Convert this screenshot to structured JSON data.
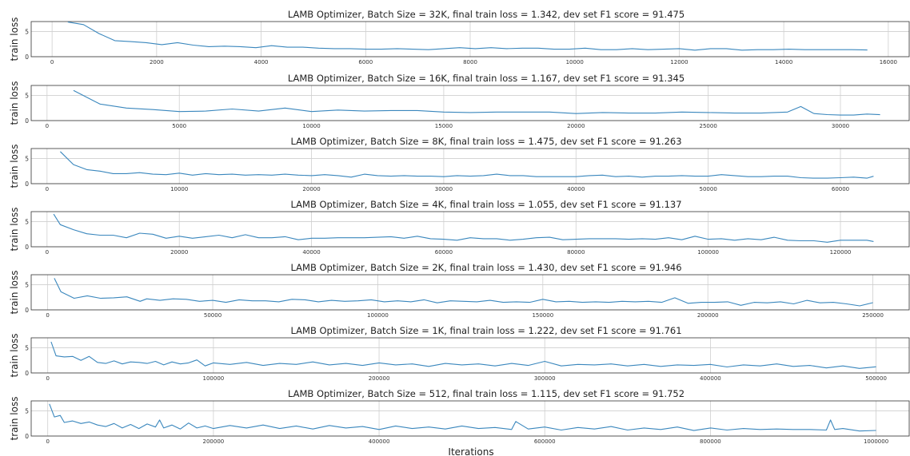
{
  "chart_data": [
    {
      "type": "line",
      "title": "LAMB Optimizer, Batch Size = 32K, final train loss = 1.342, dev set F1 score = 91.475",
      "ylabel": "train loss",
      "xlabel": "",
      "xlim": [
        -400,
        16400
      ],
      "ylim": [
        0,
        7
      ],
      "xticks": [
        0,
        2000,
        4000,
        6000,
        8000,
        10000,
        12000,
        14000,
        16000
      ],
      "yticks": [
        0,
        5
      ],
      "grid": true,
      "series": [
        {
          "x": [
            300,
            600,
            900,
            1200,
            1500,
            1800,
            2100,
            2400,
            2700,
            3000,
            3300,
            3600,
            3900,
            4200,
            4500,
            4800,
            5100,
            5400,
            5700,
            6000,
            6300,
            6600,
            6900,
            7200,
            7500,
            7800,
            8100,
            8400,
            8700,
            9000,
            9300,
            9600,
            9900,
            10200,
            10500,
            10800,
            11100,
            11400,
            11700,
            12000,
            12300,
            12600,
            12900,
            13200,
            13500,
            13800,
            14100,
            14400,
            14700,
            15000,
            15300,
            15600
          ],
          "y": [
            6.9,
            6.4,
            4.6,
            3.2,
            3.0,
            2.8,
            2.4,
            2.8,
            2.3,
            2.0,
            2.1,
            2.0,
            1.8,
            2.2,
            1.9,
            1.9,
            1.7,
            1.6,
            1.6,
            1.5,
            1.5,
            1.6,
            1.5,
            1.4,
            1.6,
            1.8,
            1.6,
            1.8,
            1.6,
            1.7,
            1.7,
            1.5,
            1.5,
            1.7,
            1.4,
            1.4,
            1.6,
            1.4,
            1.5,
            1.6,
            1.3,
            1.6,
            1.6,
            1.3,
            1.4,
            1.4,
            1.5,
            1.4,
            1.4,
            1.4,
            1.4,
            1.34
          ]
        }
      ]
    },
    {
      "type": "line",
      "title": "LAMB Optimizer, Batch Size = 16K, final train loss = 1.167, dev set F1 score = 91.345",
      "ylabel": "train loss",
      "xlabel": "",
      "xlim": [
        -600,
        32600
      ],
      "ylim": [
        0,
        7
      ],
      "xticks": [
        0,
        5000,
        10000,
        15000,
        20000,
        25000,
        30000
      ],
      "yticks": [
        0,
        5
      ],
      "grid": true,
      "series": [
        {
          "x": [
            1000,
            2000,
            3000,
            4000,
            5000,
            6000,
            7000,
            8000,
            9000,
            10000,
            11000,
            12000,
            13000,
            14000,
            15000,
            16000,
            17000,
            18000,
            19000,
            20000,
            21000,
            22000,
            23000,
            24000,
            25000,
            26000,
            27000,
            28000,
            28500,
            29000,
            29500,
            30000,
            30500,
            31000,
            31500
          ],
          "y": [
            6.0,
            3.3,
            2.5,
            2.2,
            1.8,
            1.9,
            2.3,
            1.9,
            2.5,
            1.8,
            2.1,
            1.9,
            2.0,
            2.0,
            1.7,
            1.6,
            1.7,
            1.7,
            1.7,
            1.4,
            1.6,
            1.5,
            1.5,
            1.7,
            1.6,
            1.5,
            1.5,
            1.7,
            2.8,
            1.4,
            1.2,
            1.1,
            1.1,
            1.3,
            1.17
          ]
        }
      ]
    },
    {
      "type": "line",
      "title": "LAMB Optimizer, Batch Size = 8K, final train loss = 1.475, dev set F1 score = 91.263",
      "ylabel": "train loss",
      "xlabel": "",
      "xlim": [
        -1200,
        65200
      ],
      "ylim": [
        0,
        7
      ],
      "xticks": [
        0,
        10000,
        20000,
        30000,
        40000,
        50000,
        60000
      ],
      "yticks": [
        0,
        5
      ],
      "grid": true,
      "series": [
        {
          "x": [
            1000,
            2000,
            3000,
            4000,
            5000,
            6000,
            7000,
            8000,
            9000,
            10000,
            11000,
            12000,
            13000,
            14000,
            15000,
            16000,
            17000,
            18000,
            19000,
            20000,
            21000,
            22000,
            23000,
            24000,
            25000,
            26000,
            27000,
            28000,
            29000,
            30000,
            31000,
            32000,
            33000,
            34000,
            35000,
            36000,
            37000,
            38000,
            39000,
            40000,
            41000,
            42000,
            43000,
            44000,
            45000,
            46000,
            47000,
            48000,
            49000,
            50000,
            51000,
            52000,
            53000,
            54000,
            55000,
            56000,
            57000,
            58000,
            59000,
            60000,
            61000,
            62000,
            62500
          ],
          "y": [
            6.4,
            3.8,
            2.8,
            2.5,
            2.0,
            2.0,
            2.2,
            1.9,
            1.8,
            2.1,
            1.7,
            2.0,
            1.8,
            1.9,
            1.7,
            1.8,
            1.7,
            1.9,
            1.7,
            1.6,
            1.8,
            1.6,
            1.3,
            1.9,
            1.6,
            1.5,
            1.6,
            1.5,
            1.5,
            1.4,
            1.6,
            1.5,
            1.6,
            1.9,
            1.6,
            1.6,
            1.4,
            1.4,
            1.4,
            1.4,
            1.6,
            1.7,
            1.4,
            1.5,
            1.3,
            1.5,
            1.5,
            1.6,
            1.5,
            1.5,
            1.8,
            1.6,
            1.4,
            1.4,
            1.5,
            1.5,
            1.2,
            1.1,
            1.1,
            1.2,
            1.3,
            1.1,
            1.475
          ]
        }
      ]
    },
    {
      "type": "line",
      "title": "LAMB Optimizer, Batch Size = 4K, final train loss = 1.055, dev set F1 score = 91.137",
      "ylabel": "train loss",
      "xlabel": "",
      "xlim": [
        -2400,
        130400
      ],
      "ylim": [
        0,
        7
      ],
      "xticks": [
        0,
        20000,
        40000,
        60000,
        80000,
        100000,
        120000
      ],
      "yticks": [
        0,
        5
      ],
      "grid": true,
      "series": [
        {
          "x": [
            1000,
            2000,
            4000,
            6000,
            8000,
            10000,
            12000,
            14000,
            16000,
            18000,
            20000,
            22000,
            24000,
            26000,
            28000,
            30000,
            32000,
            34000,
            36000,
            38000,
            40000,
            42000,
            44000,
            46000,
            48000,
            50000,
            52000,
            54000,
            56000,
            58000,
            60000,
            62000,
            64000,
            66000,
            68000,
            70000,
            72000,
            74000,
            76000,
            78000,
            80000,
            82000,
            84000,
            86000,
            88000,
            90000,
            92000,
            94000,
            96000,
            98000,
            100000,
            102000,
            104000,
            106000,
            108000,
            110000,
            112000,
            114000,
            116000,
            118000,
            120000,
            122000,
            124000,
            125000
          ],
          "y": [
            6.5,
            4.4,
            3.4,
            2.6,
            2.3,
            2.3,
            1.8,
            2.7,
            2.5,
            1.7,
            2.1,
            1.7,
            2.0,
            2.3,
            1.8,
            2.4,
            1.8,
            1.8,
            2.0,
            1.4,
            1.7,
            1.7,
            1.8,
            1.8,
            1.8,
            1.9,
            2.0,
            1.7,
            2.1,
            1.6,
            1.5,
            1.3,
            1.8,
            1.6,
            1.6,
            1.3,
            1.5,
            1.8,
            1.9,
            1.4,
            1.5,
            1.6,
            1.6,
            1.6,
            1.5,
            1.6,
            1.5,
            1.8,
            1.4,
            2.1,
            1.5,
            1.6,
            1.3,
            1.6,
            1.4,
            1.9,
            1.3,
            1.2,
            1.2,
            0.9,
            1.3,
            1.3,
            1.3,
            1.055
          ]
        }
      ]
    },
    {
      "type": "line",
      "title": "LAMB Optimizer, Batch Size = 2K, final train loss = 1.430, dev set F1 score = 91.946",
      "ylabel": "train loss",
      "xlabel": "",
      "xlim": [
        -5000,
        261000
      ],
      "ylim": [
        0,
        7
      ],
      "xticks": [
        0,
        50000,
        100000,
        150000,
        200000,
        250000
      ],
      "yticks": [
        0,
        5
      ],
      "grid": true,
      "series": [
        {
          "x": [
            2000,
            4000,
            8000,
            12000,
            16000,
            20000,
            24000,
            28000,
            30000,
            34000,
            38000,
            42000,
            46000,
            50000,
            54000,
            58000,
            62000,
            66000,
            70000,
            74000,
            78000,
            82000,
            86000,
            90000,
            94000,
            98000,
            102000,
            106000,
            110000,
            114000,
            118000,
            122000,
            126000,
            130000,
            134000,
            138000,
            142000,
            146000,
            150000,
            154000,
            158000,
            162000,
            166000,
            170000,
            174000,
            178000,
            182000,
            186000,
            190000,
            194000,
            198000,
            202000,
            206000,
            210000,
            214000,
            218000,
            222000,
            226000,
            230000,
            234000,
            238000,
            242000,
            246000,
            250000
          ],
          "y": [
            6.3,
            3.6,
            2.3,
            2.8,
            2.3,
            2.4,
            2.6,
            1.7,
            2.2,
            1.9,
            2.2,
            2.1,
            1.7,
            1.9,
            1.5,
            2.0,
            1.8,
            1.8,
            1.6,
            2.1,
            2.0,
            1.6,
            1.9,
            1.7,
            1.8,
            2.0,
            1.6,
            1.8,
            1.6,
            2.0,
            1.4,
            1.8,
            1.7,
            1.6,
            1.9,
            1.5,
            1.6,
            1.5,
            2.1,
            1.6,
            1.7,
            1.5,
            1.6,
            1.5,
            1.7,
            1.6,
            1.7,
            1.5,
            2.4,
            1.3,
            1.5,
            1.5,
            1.6,
            0.9,
            1.5,
            1.4,
            1.6,
            1.2,
            1.9,
            1.4,
            1.5,
            1.2,
            0.8,
            1.43
          ]
        }
      ]
    },
    {
      "type": "line",
      "title": "LAMB Optimizer, Batch Size = 1K, final train loss = 1.222, dev set F1 score = 91.761",
      "ylabel": "train loss",
      "xlabel": "",
      "xlim": [
        -10000,
        520000
      ],
      "ylim": [
        0,
        7
      ],
      "xticks": [
        0,
        100000,
        200000,
        300000,
        400000,
        500000
      ],
      "yticks": [
        0,
        5
      ],
      "grid": true,
      "series": [
        {
          "x": [
            2000,
            5000,
            10000,
            15000,
            20000,
            25000,
            30000,
            35000,
            40000,
            45000,
            50000,
            55000,
            60000,
            65000,
            70000,
            75000,
            80000,
            85000,
            90000,
            95000,
            100000,
            110000,
            120000,
            130000,
            140000,
            150000,
            160000,
            170000,
            180000,
            190000,
            200000,
            210000,
            220000,
            230000,
            240000,
            250000,
            260000,
            270000,
            280000,
            290000,
            300000,
            310000,
            320000,
            330000,
            340000,
            350000,
            360000,
            370000,
            380000,
            390000,
            400000,
            410000,
            420000,
            430000,
            440000,
            450000,
            460000,
            470000,
            480000,
            490000,
            500000
          ],
          "y": [
            6.2,
            3.4,
            3.2,
            3.3,
            2.5,
            3.3,
            2.1,
            1.9,
            2.4,
            1.8,
            2.2,
            2.1,
            1.9,
            2.3,
            1.6,
            2.2,
            1.8,
            2.0,
            2.6,
            1.4,
            2.0,
            1.7,
            2.1,
            1.5,
            1.9,
            1.7,
            2.2,
            1.6,
            1.9,
            1.5,
            2.0,
            1.6,
            1.8,
            1.3,
            1.9,
            1.6,
            1.8,
            1.4,
            1.9,
            1.5,
            2.3,
            1.4,
            1.7,
            1.6,
            1.8,
            1.4,
            1.7,
            1.3,
            1.6,
            1.5,
            1.7,
            1.2,
            1.6,
            1.4,
            1.8,
            1.3,
            1.5,
            1.0,
            1.4,
            0.9,
            1.222
          ]
        }
      ]
    },
    {
      "type": "line",
      "title": "LAMB Optimizer, Batch Size = 512, final train loss = 1.115, dev set F1 score = 91.752",
      "ylabel": "train loss",
      "xlabel": "Iterations",
      "xlim": [
        -20000,
        1040000
      ],
      "ylim": [
        0,
        7
      ],
      "xticks": [
        0,
        200000,
        400000,
        600000,
        800000,
        1000000
      ],
      "yticks": [
        0,
        5
      ],
      "grid": true,
      "series": [
        {
          "x": [
            2000,
            8000,
            15000,
            20000,
            30000,
            40000,
            50000,
            60000,
            70000,
            80000,
            90000,
            100000,
            110000,
            120000,
            130000,
            135000,
            140000,
            150000,
            160000,
            170000,
            180000,
            190000,
            200000,
            220000,
            240000,
            260000,
            280000,
            300000,
            320000,
            340000,
            360000,
            380000,
            400000,
            420000,
            440000,
            460000,
            480000,
            500000,
            520000,
            540000,
            560000,
            565000,
            580000,
            600000,
            620000,
            640000,
            660000,
            680000,
            700000,
            720000,
            740000,
            760000,
            780000,
            800000,
            820000,
            840000,
            860000,
            880000,
            900000,
            920000,
            940000,
            945000,
            950000,
            960000,
            980000,
            1000000
          ],
          "y": [
            6.4,
            3.8,
            4.1,
            2.7,
            3.0,
            2.5,
            2.8,
            2.2,
            1.9,
            2.5,
            1.6,
            2.3,
            1.5,
            2.4,
            1.8,
            3.2,
            1.6,
            2.2,
            1.4,
            2.6,
            1.6,
            2.0,
            1.5,
            2.1,
            1.6,
            2.2,
            1.5,
            2.0,
            1.4,
            2.1,
            1.6,
            1.9,
            1.3,
            2.0,
            1.5,
            1.8,
            1.4,
            2.0,
            1.5,
            1.7,
            1.3,
            2.9,
            1.4,
            1.8,
            1.2,
            1.7,
            1.4,
            1.9,
            1.2,
            1.6,
            1.3,
            1.8,
            1.1,
            1.6,
            1.2,
            1.5,
            1.3,
            1.4,
            1.3,
            1.3,
            1.2,
            3.2,
            1.3,
            1.5,
            1.0,
            1.115
          ]
        }
      ]
    }
  ]
}
